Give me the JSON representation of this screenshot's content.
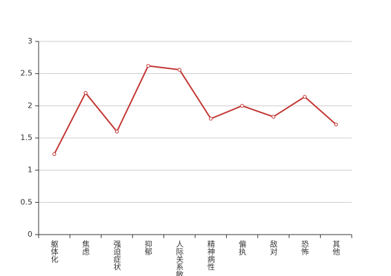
{
  "chart_data": {
    "type": "line",
    "categories": [
      "躯体化",
      "焦虑",
      "强迫症状",
      "抑郁",
      "人际关系敏感",
      "精神病性",
      "偏执",
      "敌对",
      "恐怖",
      "其他"
    ],
    "values": [
      1.25,
      2.2,
      1.6,
      2.62,
      2.56,
      1.8,
      2.0,
      1.83,
      2.14,
      1.71
    ],
    "color": "#c23531",
    "ylim": [
      0,
      3
    ],
    "yticks": [
      0,
      0.5,
      1,
      1.5,
      2,
      2.5,
      3
    ],
    "grid": true
  }
}
